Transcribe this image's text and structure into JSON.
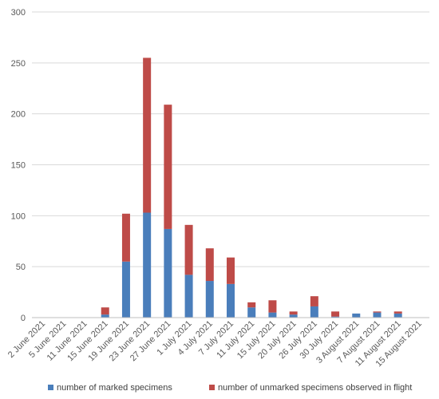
{
  "chart_data": {
    "type": "bar",
    "stacked": true,
    "categories": [
      "2 June 2021",
      "5 June 2021",
      "11 June 2021",
      "15 June 2021",
      "19 June 2021",
      "23 June 2021",
      "27 June 2021",
      "1 July 2021",
      "4 July 2021",
      "7 July 2021",
      "11 July 2021",
      "15 July 2021",
      "20 July 2021",
      "26 July 2021",
      "30 July 2021",
      "3 August 2021",
      "7 August 2021",
      "11 August 2021",
      "15 August 2021"
    ],
    "series": [
      {
        "name": "number of marked specimens",
        "color": "#4a7ebb",
        "values": [
          0,
          0,
          0,
          3,
          55,
          103,
          87,
          42,
          36,
          33,
          10,
          5,
          3,
          11,
          1,
          4,
          5,
          4,
          0
        ]
      },
      {
        "name": "number of unmarked specimens observed in flight",
        "color": "#be4b48",
        "values": [
          0,
          0,
          0,
          7,
          47,
          152,
          122,
          49,
          32,
          26,
          5,
          12,
          3,
          10,
          5,
          0,
          1,
          2,
          0
        ]
      }
    ],
    "ylim": [
      0,
      300
    ],
    "yticks": [
      0,
      50,
      100,
      150,
      200,
      250,
      300
    ],
    "grid": true,
    "legend": "bottom"
  }
}
